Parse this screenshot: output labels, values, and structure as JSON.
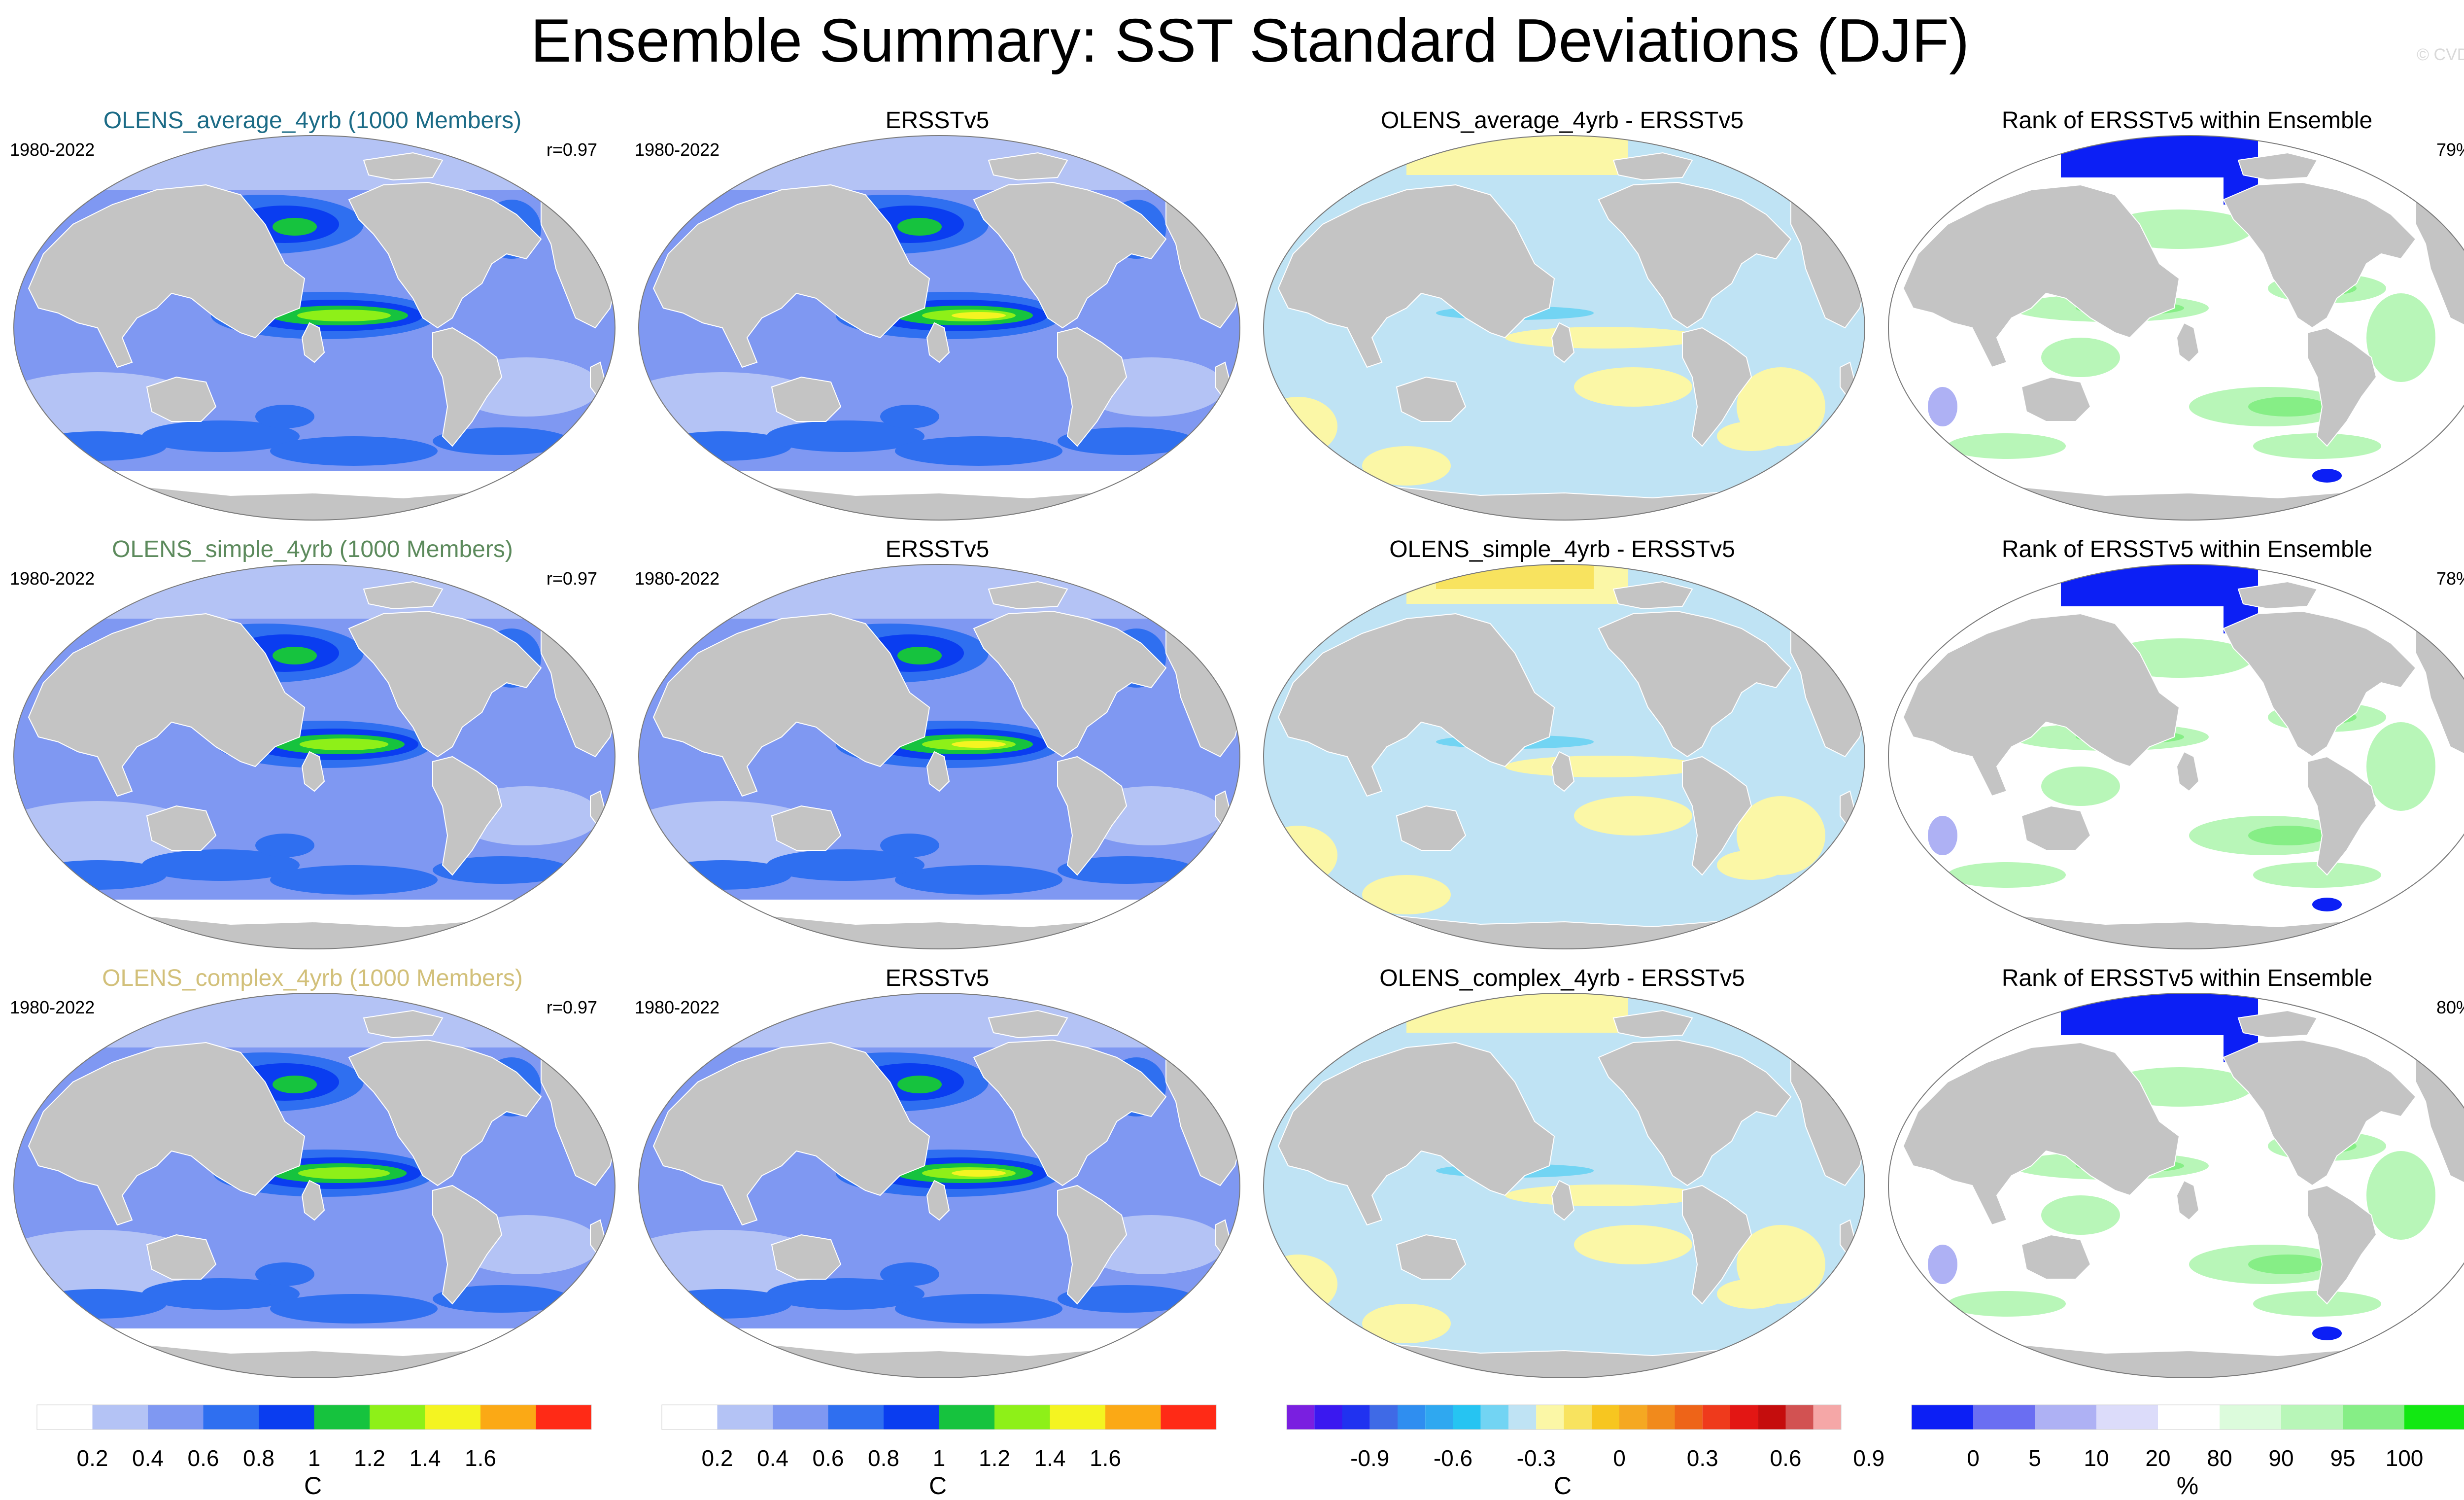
{
  "header": {
    "title": "Ensemble Summary: SST Standard Deviations (DJF)",
    "copyright": "© CVDP"
  },
  "colors": {
    "land": "#c4c4c4",
    "ocean_outline": "#7a7a7a",
    "ensemble_title_colors": [
      "#1b6b86",
      "#5c8a5c",
      "#d2c07a"
    ],
    "sd_scale": [
      "#ffffff",
      "#b4c3f5",
      "#7f98f2",
      "#2f6ff0",
      "#0a3df0",
      "#16c33e",
      "#8ef018",
      "#f4f421",
      "#fba915",
      "#ff2a16"
    ],
    "diff_scale": [
      "#7a1fe0",
      "#3a18f0",
      "#2032f0",
      "#3f6ae6",
      "#2f8ef0",
      "#2fa8f0",
      "#26c4f2",
      "#72d4f3",
      "#bfe3f4",
      "#fbf7a6",
      "#f8e35f",
      "#f7c620",
      "#f5a822",
      "#f18a1c",
      "#ee6418",
      "#ef3a1c",
      "#e31614",
      "#c50d0d",
      "#d25252",
      "#f5a7a7"
    ],
    "rank_scale": [
      "#0c1ff5",
      "#6a6ef2",
      "#aeb1f4",
      "#dcdcfa",
      "#ffffff",
      "#dcfbdc",
      "#b8f6b8",
      "#86ee86",
      "#12e812"
    ]
  },
  "rows": [
    {
      "ensemble": {
        "title": "OLENS_average_4yrb (1000 Members)",
        "years": "1980-2022",
        "stat": "r=0.97"
      },
      "obs": {
        "title": "ERSSTv5",
        "years": "1980-2022"
      },
      "diff": {
        "title": "OLENS_average_4yrb - ERSSTv5"
      },
      "rank": {
        "title": "Rank of ERSSTv5 within Ensemble",
        "stat": "79%"
      }
    },
    {
      "ensemble": {
        "title": "OLENS_simple_4yrb (1000 Members)",
        "years": "1980-2022",
        "stat": "r=0.97"
      },
      "obs": {
        "title": "ERSSTv5",
        "years": "1980-2022"
      },
      "diff": {
        "title": "OLENS_simple_4yrb - ERSSTv5"
      },
      "rank": {
        "title": "Rank of ERSSTv5 within Ensemble",
        "stat": "78%"
      }
    },
    {
      "ensemble": {
        "title": "OLENS_complex_4yrb (1000 Members)",
        "years": "1980-2022",
        "stat": "r=0.97"
      },
      "obs": {
        "title": "ERSSTv5",
        "years": "1980-2022"
      },
      "diff": {
        "title": "OLENS_complex_4yrb - ERSSTv5"
      },
      "rank": {
        "title": "Rank of ERSSTv5 within Ensemble",
        "stat": "80%"
      }
    }
  ],
  "colorbars": {
    "sd": {
      "labels": [
        "0.2",
        "0.4",
        "0.6",
        "0.8",
        "1",
        "1.2",
        "1.4",
        "1.6"
      ],
      "units": "C"
    },
    "sd_obs": {
      "labels": [
        "0.2",
        "0.4",
        "0.6",
        "0.8",
        "1",
        "1.2",
        "1.4",
        "1.6"
      ],
      "units": "C"
    },
    "diff": {
      "labels": [
        "-0.9",
        "-0.6",
        "-0.3",
        "0",
        "0.3",
        "0.6",
        "0.9"
      ],
      "units": "C"
    },
    "rank": {
      "labels": [
        "0",
        "5",
        "10",
        "20",
        "80",
        "90",
        "95",
        "100"
      ],
      "units": "%"
    }
  }
}
